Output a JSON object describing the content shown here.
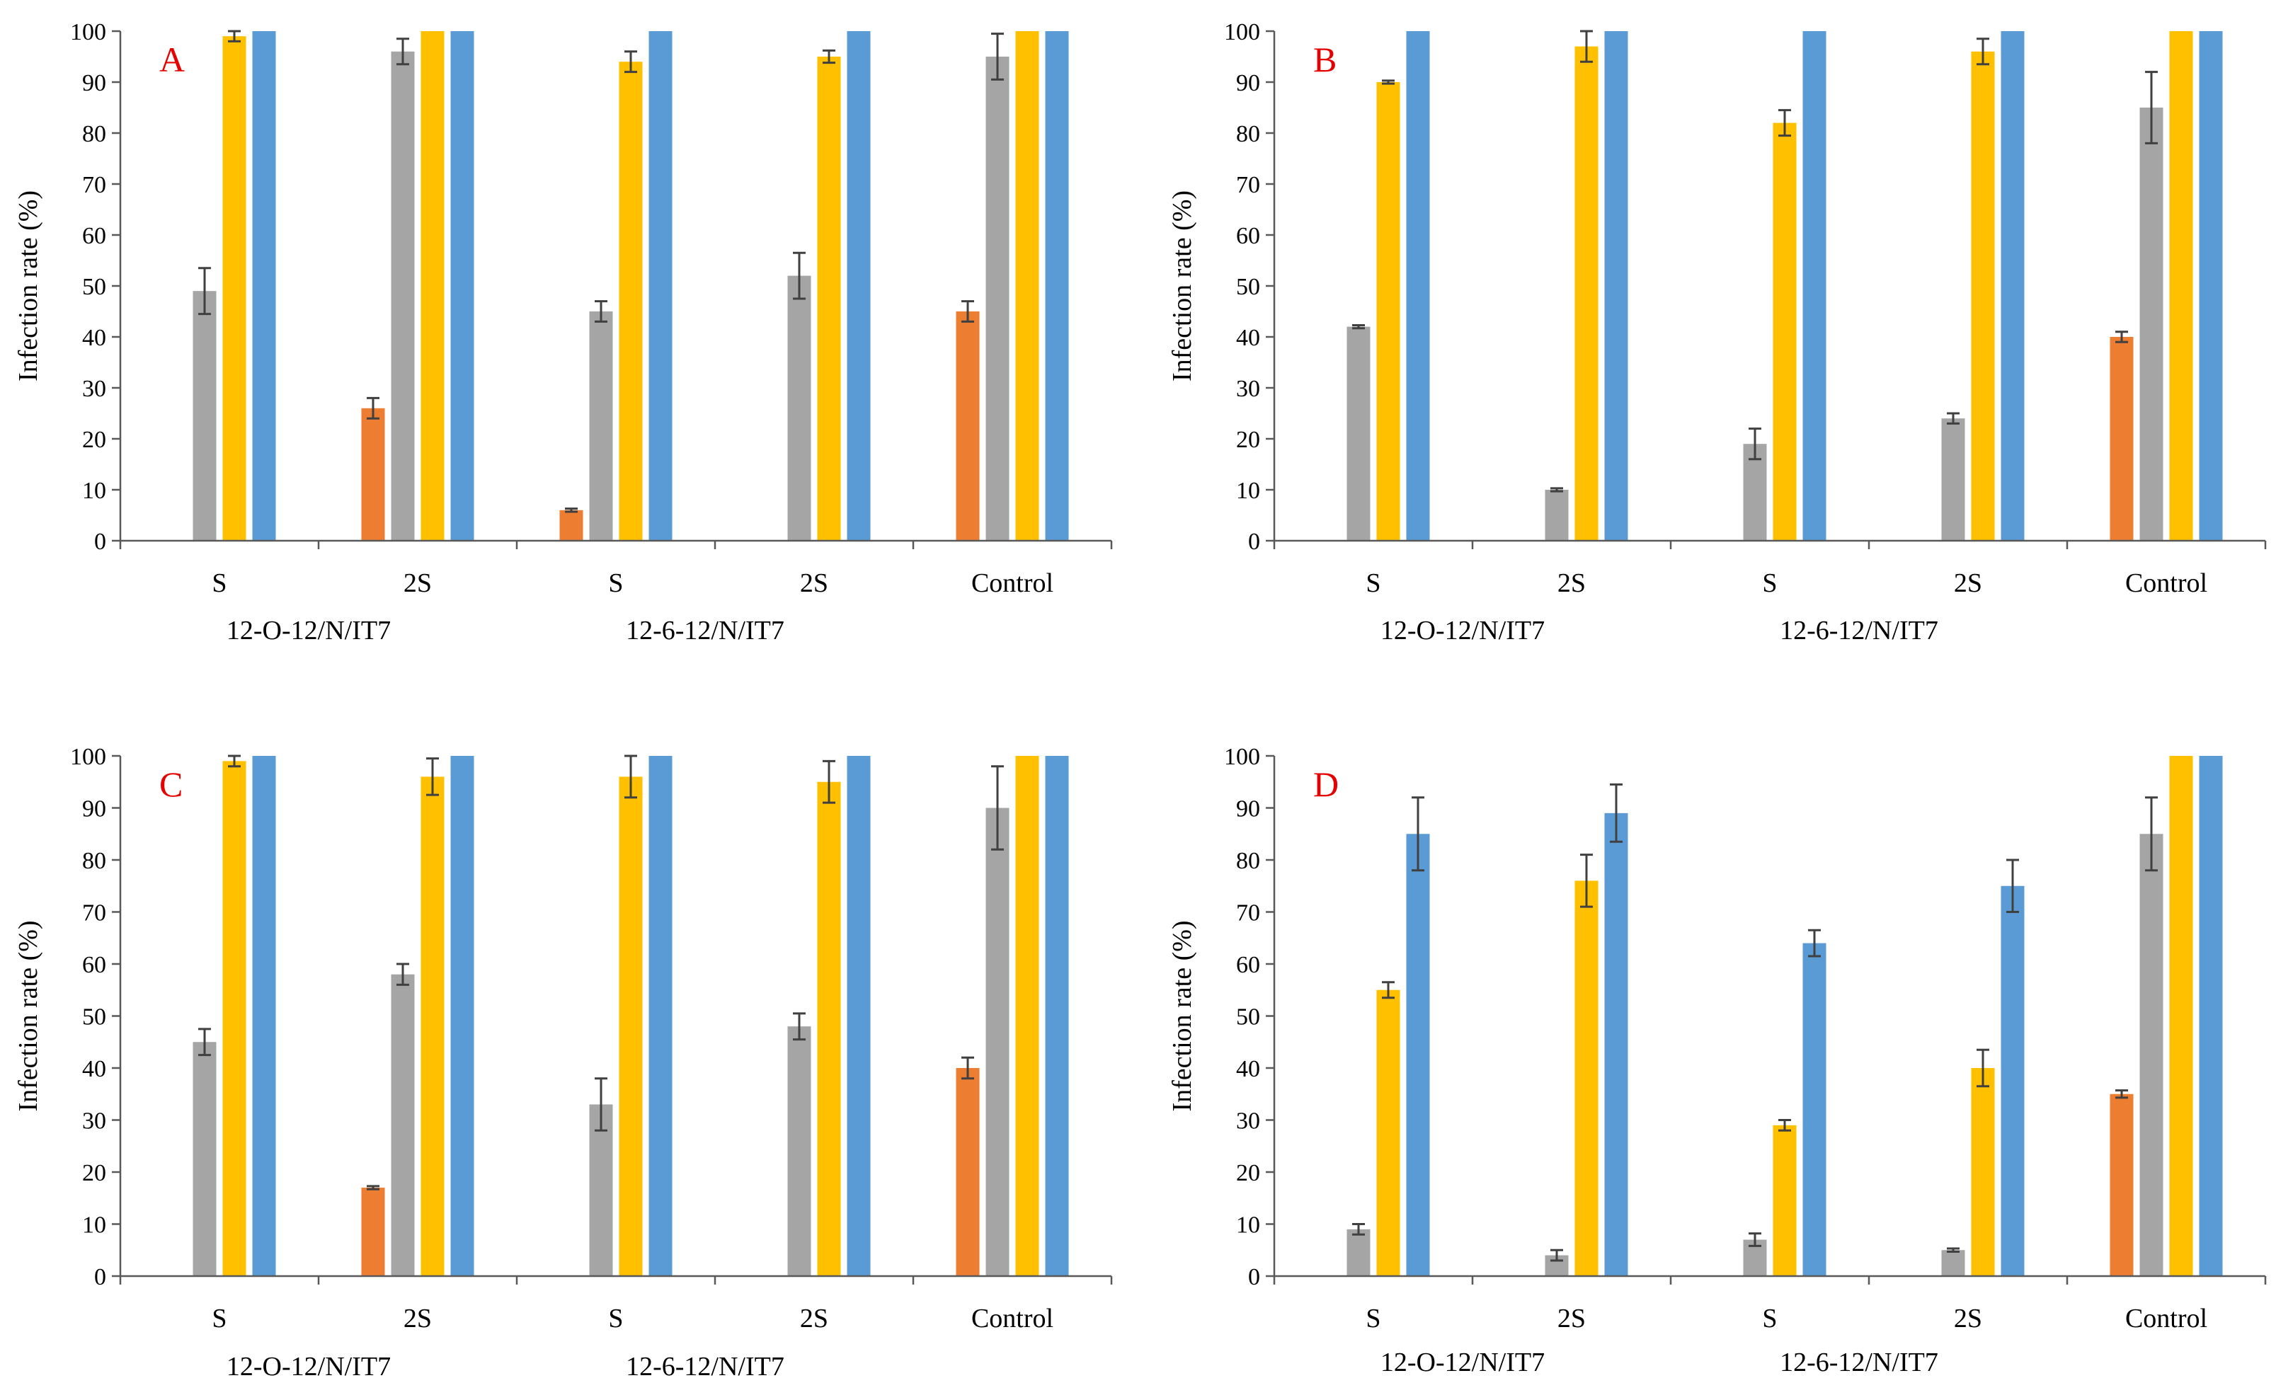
{
  "figure": {
    "series_colors": [
      "#ED7D31",
      "#A5A5A5",
      "#FFC000",
      "#5B9BD5"
    ],
    "error_bar_color": "#404040",
    "panel_letter_color": "#E60000"
  },
  "chart_data": [
    {
      "type": "bar",
      "panel_label": "A",
      "ylabel": "Infection rate (%)",
      "ylim": [
        0,
        100
      ],
      "yticks": [
        "0",
        "10",
        "20",
        "30",
        "40",
        "50",
        "60",
        "70",
        "80",
        "90",
        "100"
      ],
      "categories": [
        "S",
        "2S",
        "S",
        "2S",
        "Control"
      ],
      "groups": [
        "12-O-12/N/IT7",
        "12-6-12/N/IT7"
      ],
      "series": [
        {
          "values": [
            0,
            26,
            6,
            0,
            45
          ],
          "errors": [
            0,
            2,
            0.3,
            0,
            2
          ]
        },
        {
          "values": [
            49,
            96,
            45,
            52,
            95
          ],
          "errors": [
            4.5,
            2.5,
            2,
            4.5,
            4.5
          ]
        },
        {
          "values": [
            99,
            100,
            94,
            95,
            100
          ],
          "errors": [
            1,
            0,
            2,
            1.2,
            0
          ]
        },
        {
          "values": [
            100,
            100,
            100,
            100,
            100
          ],
          "errors": [
            0,
            0,
            0,
            0,
            0
          ]
        }
      ]
    },
    {
      "type": "bar",
      "panel_label": "B",
      "ylabel": "Infection rate (%)",
      "ylim": [
        0,
        100
      ],
      "yticks": [
        "0",
        "10",
        "20",
        "30",
        "40",
        "50",
        "60",
        "70",
        "80",
        "90",
        "100"
      ],
      "categories": [
        "S",
        "2S",
        "S",
        "2S",
        "Control"
      ],
      "groups": [
        "12-O-12/N/IT7",
        "12-6-12/N/IT7"
      ],
      "series": [
        {
          "values": [
            0,
            0,
            0,
            0,
            40
          ],
          "errors": [
            0,
            0,
            0,
            0,
            1
          ]
        },
        {
          "values": [
            42,
            10,
            19,
            24,
            85
          ],
          "errors": [
            0.3,
            0.3,
            3,
            1,
            7
          ]
        },
        {
          "values": [
            90,
            97,
            82,
            96,
            100
          ],
          "errors": [
            0.3,
            3,
            2.5,
            2.5,
            0
          ]
        },
        {
          "values": [
            100,
            100,
            100,
            100,
            100
          ],
          "errors": [
            0,
            0,
            0,
            0,
            0
          ]
        }
      ]
    },
    {
      "type": "bar",
      "panel_label": "C",
      "ylabel": "Infection rate (%)",
      "ylim": [
        0,
        100
      ],
      "yticks": [
        "0",
        "10",
        "20",
        "30",
        "40",
        "50",
        "60",
        "70",
        "80",
        "90",
        "100"
      ],
      "categories": [
        "S",
        "2S",
        "S",
        "2S",
        "Control"
      ],
      "groups": [
        "12-O-12/N/IT7",
        "12-6-12/N/IT7"
      ],
      "series": [
        {
          "values": [
            0,
            17,
            0,
            0,
            40
          ],
          "errors": [
            0,
            0.3,
            0,
            0,
            2
          ]
        },
        {
          "values": [
            45,
            58,
            33,
            48,
            90
          ],
          "errors": [
            2.5,
            2,
            5,
            2.5,
            8
          ]
        },
        {
          "values": [
            99,
            96,
            96,
            95,
            100
          ],
          "errors": [
            1,
            3.5,
            4,
            4,
            0
          ]
        },
        {
          "values": [
            100,
            100,
            100,
            100,
            100
          ],
          "errors": [
            0,
            0,
            0,
            0,
            0
          ]
        }
      ]
    },
    {
      "type": "bar",
      "panel_label": "D",
      "ylabel": "Infection rate (%)",
      "ylim": [
        0,
        100
      ],
      "yticks": [
        "0",
        "10",
        "20",
        "30",
        "40",
        "50",
        "60",
        "70",
        "80",
        "90",
        "100"
      ],
      "categories": [
        "S",
        "2S",
        "S",
        "2S",
        "Control"
      ],
      "groups": [
        "12-O-12/N/IT7",
        "12-6-12/N/IT7"
      ],
      "series": [
        {
          "values": [
            0,
            0,
            0,
            0,
            35
          ],
          "errors": [
            0,
            0,
            0,
            0,
            0.7
          ]
        },
        {
          "values": [
            9,
            4,
            7,
            5,
            85
          ],
          "errors": [
            1,
            1,
            1.2,
            0.3,
            7
          ]
        },
        {
          "values": [
            55,
            76,
            29,
            40,
            100
          ],
          "errors": [
            1.5,
            5,
            1,
            3.5,
            0
          ]
        },
        {
          "values": [
            85,
            89,
            64,
            75,
            100
          ],
          "errors": [
            7,
            5.5,
            2.5,
            5,
            0
          ]
        }
      ]
    }
  ]
}
